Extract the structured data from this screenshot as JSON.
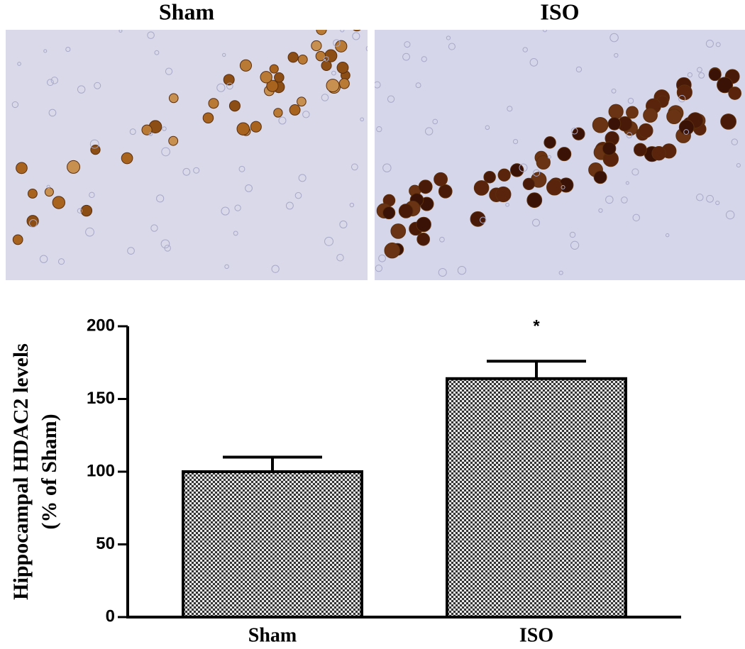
{
  "chart_data": {
    "type": "bar",
    "panel_titles": [
      "Sham",
      "ISO"
    ],
    "ylabel": [
      "Hippocampal HDAC2 levels",
      "(% of Sham)"
    ],
    "categories": [
      "Sham",
      "ISO"
    ],
    "values": [
      100,
      164
    ],
    "errors": [
      10,
      12
    ],
    "annotations": [
      {
        "category": 1,
        "text": "*"
      }
    ],
    "ylim": [
      0,
      200
    ],
    "yticks": [
      0,
      50,
      100,
      150,
      200
    ],
    "color": "#333333"
  }
}
